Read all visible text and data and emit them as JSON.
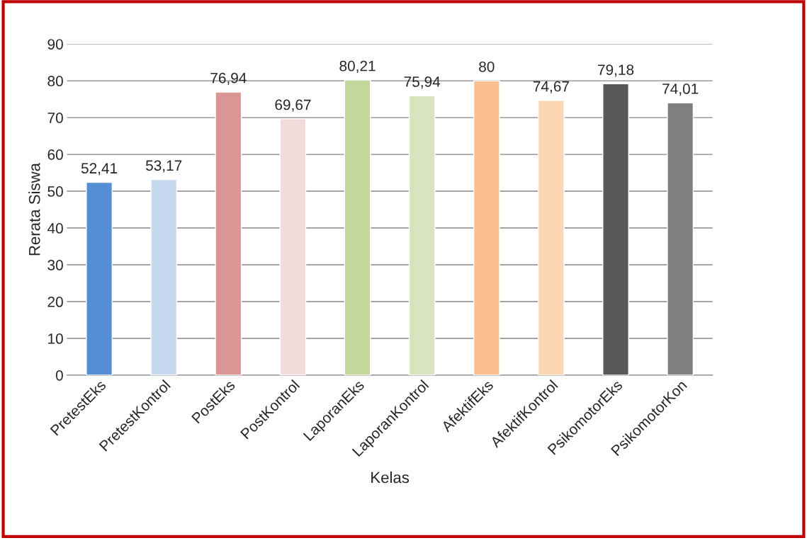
{
  "chart_data": {
    "type": "bar",
    "xlabel": "Kelas",
    "ylabel": "Rerata Siswa",
    "categories": [
      "PretestEks",
      "PretestKontrol",
      "PostEks",
      "PostKontrol",
      "LaporanEks",
      "LaporanKontrol",
      "AfektifEks",
      "AfektifKontrol",
      "PsikomotorEks",
      "PsikomotorKon"
    ],
    "values": [
      52.41,
      53.17,
      76.94,
      69.67,
      80.21,
      75.94,
      80,
      74.67,
      79.18,
      74.01
    ],
    "value_labels": [
      "52,41",
      "53,17",
      "76,94",
      "69,67",
      "80,21",
      "75,94",
      "80",
      "74,67",
      "79,18",
      "74,01"
    ],
    "colors": [
      "#558ed5",
      "#c6d9f1",
      "#d99694",
      "#f2dcdb",
      "#c3d69b",
      "#d7e4bd",
      "#fac090",
      "#fcd5b5",
      "#595959",
      "#7f7f7f"
    ],
    "ylim": [
      0,
      90
    ],
    "yticks": [
      0,
      10,
      20,
      30,
      40,
      50,
      60,
      70,
      80,
      90
    ],
    "grid": "y",
    "legend": false
  }
}
